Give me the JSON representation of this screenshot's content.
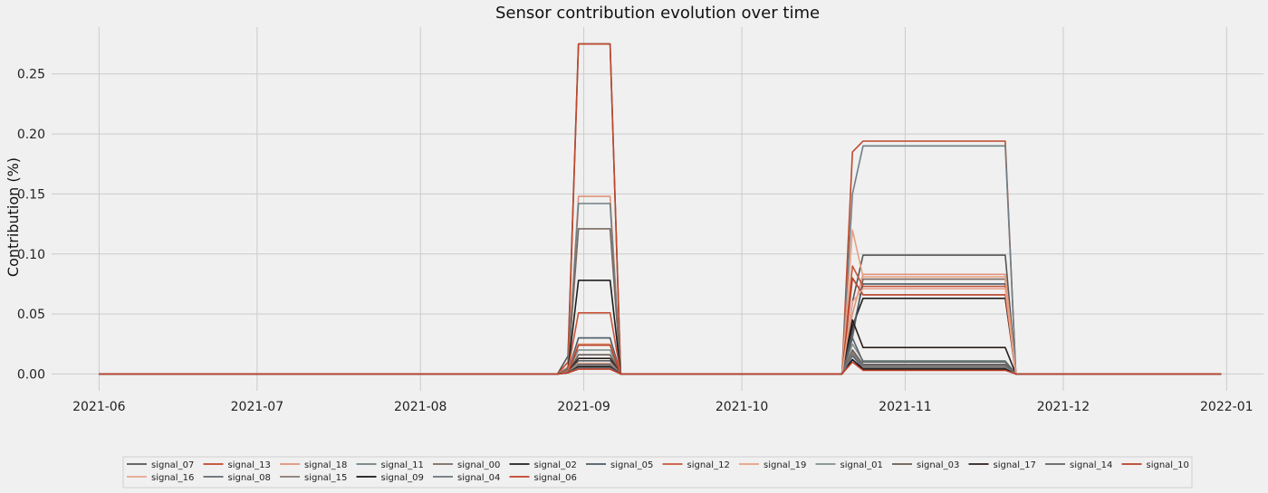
{
  "chart_data": {
    "type": "line",
    "title": "Sensor contribution evolution over time",
    "xlabel": "",
    "ylabel": "Contribution (%)",
    "xlim": [
      "2021-05-23",
      "2022-01-08"
    ],
    "ylim": [
      -0.014,
      0.289
    ],
    "grid": true,
    "legend_position": "bottom",
    "x_ticks": [
      "2021-06",
      "2021-07",
      "2021-08",
      "2021-09",
      "2021-10",
      "2021-11",
      "2021-12",
      "2022-01"
    ],
    "y_ticks": [
      "0.00",
      "0.05",
      "0.10",
      "0.15",
      "0.20",
      "0.25"
    ],
    "x": [
      "2021-06-01",
      "2021-08-27",
      "2021-08-29",
      "2021-08-31",
      "2021-09-06",
      "2021-09-08",
      "2021-10-20",
      "2021-10-22",
      "2021-10-24",
      "2021-11-20",
      "2021-11-22",
      "2021-12-31"
    ],
    "series": [
      {
        "name": "signal_07",
        "color": "#555555",
        "values": [
          0,
          0,
          0.015,
          0.275,
          0.275,
          0,
          0,
          0.06,
          0.099,
          0.099,
          0,
          0
        ]
      },
      {
        "name": "signal_13",
        "color": "#c0462a",
        "values": [
          0,
          0,
          0.01,
          0.275,
          0.275,
          0,
          0,
          0.185,
          0.194,
          0.194,
          0,
          0
        ]
      },
      {
        "name": "signal_18",
        "color": "#e0937a",
        "values": [
          0,
          0,
          0.006,
          0.148,
          0.148,
          0,
          0,
          0.05,
          0.083,
          0.083,
          0,
          0
        ]
      },
      {
        "name": "signal_11",
        "color": "#6f7f85",
        "values": [
          0,
          0,
          0.005,
          0.142,
          0.142,
          0,
          0,
          0.15,
          0.19,
          0.19,
          0,
          0
        ]
      },
      {
        "name": "signal_00",
        "color": "#7a6a60",
        "values": [
          0,
          0,
          0.004,
          0.121,
          0.121,
          0,
          0,
          0.03,
          0.079,
          0.079,
          0,
          0
        ]
      },
      {
        "name": "signal_02",
        "color": "#1e1e1e",
        "values": [
          0,
          0,
          0.003,
          0.078,
          0.078,
          0,
          0,
          0.04,
          0.063,
          0.063,
          0,
          0
        ]
      },
      {
        "name": "signal_05",
        "color": "#4a5a66",
        "values": [
          0,
          0,
          0.002,
          0.03,
          0.03,
          0,
          0,
          0.035,
          0.075,
          0.075,
          0,
          0
        ]
      },
      {
        "name": "signal_12",
        "color": "#c8553a",
        "values": [
          0,
          0,
          0.003,
          0.051,
          0.051,
          0,
          0,
          0.09,
          0.073,
          0.073,
          0,
          0
        ]
      },
      {
        "name": "signal_19",
        "color": "#e8a080",
        "values": [
          0,
          0,
          0.002,
          0.025,
          0.025,
          0,
          0,
          0.12,
          0.081,
          0.081,
          0,
          0
        ]
      },
      {
        "name": "signal_01",
        "color": "#7f8f8a",
        "values": [
          0,
          0,
          0.002,
          0.02,
          0.02,
          0,
          0,
          0.025,
          0.011,
          0.011,
          0,
          0
        ]
      },
      {
        "name": "signal_03",
        "color": "#6a5a55",
        "values": [
          0,
          0,
          0.001,
          0.016,
          0.016,
          0,
          0,
          0.02,
          0.008,
          0.008,
          0,
          0
        ]
      },
      {
        "name": "signal_17",
        "color": "#2a1e1a",
        "values": [
          0,
          0,
          0.001,
          0.013,
          0.013,
          0,
          0,
          0.045,
          0.022,
          0.022,
          0,
          0
        ]
      },
      {
        "name": "signal_14",
        "color": "#5a6268",
        "values": [
          0,
          0,
          0.001,
          0.011,
          0.011,
          0,
          0,
          0.03,
          0.01,
          0.01,
          0,
          0
        ]
      },
      {
        "name": "signal_10",
        "color": "#b84028",
        "values": [
          0,
          0,
          0.001,
          0.024,
          0.024,
          0,
          0,
          0.08,
          0.066,
          0.066,
          0,
          0
        ]
      },
      {
        "name": "signal_16",
        "color": "#e6a58c",
        "values": [
          0,
          0,
          0.001,
          0.009,
          0.009,
          0,
          0,
          0.06,
          0.071,
          0.071,
          0,
          0
        ]
      },
      {
        "name": "signal_08",
        "color": "#606a72",
        "values": [
          0,
          0,
          0.001,
          0.008,
          0.008,
          0,
          0,
          0.015,
          0.005,
          0.005,
          0,
          0
        ]
      },
      {
        "name": "signal_15",
        "color": "#8a7a72",
        "values": [
          0,
          0,
          0.001,
          0.007,
          0.007,
          0,
          0,
          0.018,
          0.006,
          0.006,
          0,
          0
        ]
      },
      {
        "name": "signal_09",
        "color": "#141414",
        "values": [
          0,
          0,
          0.001,
          0.006,
          0.006,
          0,
          0,
          0.012,
          0.004,
          0.004,
          0,
          0
        ]
      },
      {
        "name": "signal_04",
        "color": "#6a747a",
        "values": [
          0,
          0,
          0.001,
          0.005,
          0.005,
          0,
          0,
          0.016,
          0.007,
          0.007,
          0,
          0
        ]
      },
      {
        "name": "signal_06",
        "color": "#c0402a",
        "values": [
          0,
          0,
          0.001,
          0.004,
          0.004,
          0,
          0,
          0.01,
          0.003,
          0.003,
          0,
          0
        ]
      }
    ]
  }
}
